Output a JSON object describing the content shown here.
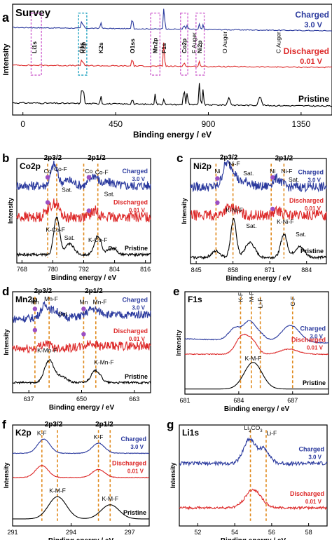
{
  "colors": {
    "charged": "#2b3a9e",
    "discharged": "#dd2a2a",
    "pristine": "#000000",
    "marker": "#e08a1e",
    "dot": "#9b4fc4",
    "survey_box": "#d16ad1",
    "c1s_box": "#2aa7c4"
  },
  "ui": {
    "intensity_label": "Intensity",
    "energy_label": "Binding energy / eV"
  },
  "chart_data": [
    {
      "id": "a",
      "type": "line",
      "panel_letter": "a",
      "title": "Survey",
      "xlabel": "Binding energy / eV",
      "ylabel": "Intensity",
      "xlim": [
        -50,
        1500
      ],
      "xticks": [
        0,
        450,
        900,
        1350
      ],
      "label_style": "big",
      "series": [
        {
          "name": "Charged",
          "sub": "3.0 V",
          "base": 0.76,
          "noise": 0.004,
          "tilt": 0.03,
          "peaks": [
            [
              285,
              0.06,
              4
            ],
            [
              293,
              0.04,
              4
            ],
            [
              378,
              0.06,
              4
            ],
            [
              531,
              0.12,
              4
            ],
            [
              685,
              0.22,
              4
            ],
            [
              782,
              0.05,
              4
            ],
            [
              798,
              0.04,
              4
            ],
            [
              857,
              0.05,
              4
            ],
            [
              874,
              0.04,
              4
            ]
          ]
        },
        {
          "name": "Discharged",
          "sub": "0.01 V",
          "base": 0.43,
          "noise": 0.005,
          "tilt": 0.02,
          "peaks": [
            [
              285,
              0.05,
              4
            ],
            [
              293,
              0.04,
              4
            ],
            [
              531,
              0.08,
              4
            ],
            [
              685,
              0.3,
              3
            ],
            [
              782,
              0.05,
              4
            ],
            [
              857,
              0.05,
              4
            ]
          ]
        },
        {
          "name": "Pristine",
          "sub": "",
          "base": 0.08,
          "noise": 0.006,
          "tilt": 0.03,
          "peaks": [
            [
              285,
              0.12,
              4
            ],
            [
              293,
              0.17,
              4
            ],
            [
              378,
              0.08,
              4
            ],
            [
              531,
              0.06,
              4
            ],
            [
              642,
              0.1,
              4
            ],
            [
              685,
              0.06,
              4
            ],
            [
              782,
              0.18,
              4
            ],
            [
              798,
              0.12,
              4
            ],
            [
              857,
              0.2,
              4
            ],
            [
              874,
              0.14,
              4
            ],
            [
              1000,
              0.07,
              8
            ],
            [
              1150,
              0.08,
              10
            ]
          ]
        }
      ],
      "peak_labels": [
        {
          "x": 55,
          "text": "Li1s"
        },
        {
          "x": 285,
          "text": "C1s"
        },
        {
          "x": 293,
          "text": "K2p"
        },
        {
          "x": 378,
          "text": "K2s"
        },
        {
          "x": 531,
          "text": "O1ss"
        },
        {
          "x": 642,
          "text": "Mn2p"
        },
        {
          "x": 685,
          "text": "F1s"
        },
        {
          "x": 782,
          "text": "Co2p"
        },
        {
          "x": 830,
          "text": "F Auger"
        },
        {
          "x": 857,
          "text": "Ni2p"
        },
        {
          "x": 980,
          "text": "O Auger"
        },
        {
          "x": 1240,
          "text": "C Auger"
        }
      ],
      "markers": []
    },
    {
      "id": "b",
      "type": "line",
      "panel_letter": "b",
      "title": "Co2p",
      "xlabel": "Binding energy / eV",
      "ylabel": "Intensity",
      "xlim": [
        766,
        818
      ],
      "xticks": [
        768,
        780,
        792,
        804,
        816
      ],
      "label_style": "small",
      "series": [
        {
          "name": "Charged",
          "sub": "3.0 V",
          "base": 0.74,
          "noise": 0.045,
          "tilt": 0,
          "peaks": [
            [
              780.5,
              0.2,
              1.8
            ],
            [
              796,
              0.1,
              2.2
            ],
            [
              786,
              0.05,
              3
            ],
            [
              802,
              0.03,
              3
            ]
          ]
        },
        {
          "name": "Discharged",
          "sub": "0.01 V",
          "base": 0.44,
          "noise": 0.05,
          "tilt": 0,
          "peaks": [
            [
              778,
              0.07,
              1.8
            ],
            [
              781,
              0.13,
              2
            ],
            [
              796.5,
              0.06,
              2
            ]
          ]
        },
        {
          "name": "Pristine",
          "sub": "",
          "base": 0.08,
          "noise": 0.012,
          "tilt": 0,
          "peaks": [
            [
              781.5,
              0.36,
              1.6
            ],
            [
              786.5,
              0.1,
              2.5
            ],
            [
              797.5,
              0.18,
              1.8
            ],
            [
              803,
              0.06,
              2.5
            ]
          ]
        }
      ],
      "peak_labels": [
        {
          "x": 780,
          "text": "2p3/2",
          "y": 0.985,
          "big": true
        },
        {
          "x": 797,
          "text": "2p1/2",
          "y": 0.985,
          "big": true
        },
        {
          "x": 778,
          "text": "Co",
          "y": 0.86
        },
        {
          "x": 783,
          "text": "Co-F",
          "y": 0.88
        },
        {
          "x": 794,
          "text": "Co",
          "y": 0.86
        },
        {
          "x": 799,
          "text": "Co-F",
          "y": 0.85
        },
        {
          "x": 785.5,
          "text": "Sat.",
          "y": 0.68
        },
        {
          "x": 802,
          "text": "Sat.",
          "y": 0.64
        },
        {
          "x": 781,
          "text": "K-Co-F",
          "y": 0.3
        },
        {
          "x": 797.5,
          "text": "K-Co-F",
          "y": 0.2
        },
        {
          "x": 786.5,
          "text": "Sat.",
          "y": 0.22
        },
        {
          "x": 803.5,
          "text": "Sat.",
          "y": 0.12
        }
      ],
      "markers": [
        778,
        781.5,
        792,
        797.5
      ],
      "dots": [
        [
          778,
          0.82
        ],
        [
          794,
          0.82
        ],
        [
          778,
          0.58
        ],
        [
          794,
          0.5
        ]
      ]
    },
    {
      "id": "c",
      "type": "line",
      "panel_letter": "c",
      "title": "Ni2p",
      "xlabel": "Binding energy / eV",
      "ylabel": "Intensity",
      "xlim": [
        843,
        891
      ],
      "xticks": [
        845,
        858,
        871,
        884
      ],
      "label_style": "small",
      "series": [
        {
          "name": "Charged",
          "sub": "3.0 V",
          "base": 0.73,
          "noise": 0.045,
          "tilt": 0,
          "peaks": [
            [
              855.5,
              0.2,
              1.8
            ],
            [
              858,
              0.14,
              1.8
            ],
            [
              873.5,
              0.08,
              2.2
            ],
            [
              862.5,
              0.05,
              3
            ]
          ]
        },
        {
          "name": "Discharged",
          "sub": "0.01 V",
          "base": 0.46,
          "noise": 0.05,
          "tilt": 0,
          "peaks": [
            [
              856,
              0.06,
              2
            ],
            [
              859,
              0.05,
              2
            ],
            [
              874,
              0.04,
              2
            ]
          ]
        },
        {
          "name": "Pristine",
          "sub": "",
          "base": 0.06,
          "noise": 0.012,
          "tilt": 0,
          "peaks": [
            [
              858.2,
              0.36,
              1.4
            ],
            [
              864,
              0.14,
              2.4
            ],
            [
              876,
              0.22,
              1.6
            ],
            [
              881.5,
              0.1,
              2.4
            ],
            [
              852,
              0.06,
              2
            ]
          ]
        }
      ],
      "peak_labels": [
        {
          "x": 856.5,
          "text": "2p3/2",
          "y": 0.99,
          "big": true
        },
        {
          "x": 876,
          "text": "2p1/2",
          "y": 0.985,
          "big": true
        },
        {
          "x": 852.5,
          "text": "Ni",
          "y": 0.86
        },
        {
          "x": 858.5,
          "text": "Ni-F",
          "y": 0.93
        },
        {
          "x": 872,
          "text": "Ni",
          "y": 0.86
        },
        {
          "x": 877,
          "text": "Ni-F",
          "y": 0.86
        },
        {
          "x": 863.5,
          "text": "Sat.",
          "y": 0.84
        },
        {
          "x": 879.5,
          "text": "Sat.",
          "y": 0.78
        },
        {
          "x": 858.5,
          "text": "K-Ni-F",
          "y": 0.49
        },
        {
          "x": 864.5,
          "text": "Sat.",
          "y": 0.34
        },
        {
          "x": 876.5,
          "text": "K-Ni-F",
          "y": 0.38
        },
        {
          "x": 882,
          "text": "Sat.",
          "y": 0.26
        }
      ],
      "markers": [
        852,
        858,
        871.5,
        876
      ],
      "dots": [
        [
          852.5,
          0.81
        ],
        [
          872,
          0.82
        ],
        [
          852.5,
          0.58
        ],
        [
          872,
          0.52
        ]
      ]
    },
    {
      "id": "d",
      "type": "line",
      "panel_letter": "d",
      "title": "Mn2p",
      "xlabel": "Binding energy / eV",
      "ylabel": "Intensity",
      "xlim": [
        633,
        667
      ],
      "xticks": [
        637,
        650,
        663
      ],
      "label_style": "small",
      "series": [
        {
          "name": "Charged",
          "sub": "3.0 V",
          "base": 0.78,
          "noise": 0.04,
          "tilt": -0.05,
          "peaks": [
            [
              641,
              0.12,
              1.5
            ],
            [
              643.5,
              0.06,
              1.5
            ],
            [
              652.5,
              0.07,
              1.6
            ],
            [
              655,
              0.03,
              1.6
            ]
          ]
        },
        {
          "name": "Discharged",
          "sub": "0.01 V",
          "base": 0.47,
          "noise": 0.045,
          "tilt": -0.04,
          "peaks": [
            [
              641,
              0.05,
              1.6
            ],
            [
              652.5,
              0.04,
              1.6
            ]
          ]
        },
        {
          "name": "Pristine",
          "sub": "",
          "base": 0.1,
          "noise": 0.01,
          "tilt": 0,
          "peaks": [
            [
              642,
              0.22,
              1.6
            ],
            [
              645,
              0.06,
              1.8
            ],
            [
              653.5,
              0.12,
              1.6
            ]
          ]
        }
      ],
      "peak_labels": [
        {
          "x": 640.5,
          "text": "2p3/2",
          "y": 0.985,
          "big": true
        },
        {
          "x": 653,
          "text": "2p1/2",
          "y": 0.985,
          "big": true
        },
        {
          "x": 638.5,
          "text": "Mn",
          "y": 0.88
        },
        {
          "x": 642.5,
          "text": "Mn-F",
          "y": 0.91
        },
        {
          "x": 650.5,
          "text": "Mn",
          "y": 0.88
        },
        {
          "x": 654.5,
          "text": "Mn-F",
          "y": 0.88
        },
        {
          "x": 645.5,
          "text": "Sat.",
          "y": 0.76
        },
        {
          "x": 641.5,
          "text": "K-Mn-F",
          "y": 0.4
        },
        {
          "x": 655.5,
          "text": "K-Mn-F",
          "y": 0.28
        }
      ],
      "markers": [
        638.5,
        642,
        650.5,
        653.5
      ],
      "dots": [
        [
          638.5,
          0.83
        ],
        [
          650.5,
          0.83
        ],
        [
          638.5,
          0.62
        ],
        [
          650.5,
          0.58
        ]
      ]
    },
    {
      "id": "e",
      "type": "line",
      "panel_letter": "e",
      "title": "F1s",
      "xlabel": "Binding energy / eV",
      "ylabel": "Intensity",
      "xlim": [
        681,
        689
      ],
      "xticks": [
        681,
        684,
        687
      ],
      "label_style": "small",
      "series": [
        {
          "name": "Charged",
          "sub": "3.0 V",
          "base": 0.5,
          "noise": 0.004,
          "tilt": 0.04,
          "peaks": [
            [
              683.8,
              0.12,
              0.5
            ],
            [
              684.6,
              0.18,
              0.45
            ],
            [
              685.2,
              0.06,
              0.4
            ],
            [
              686.9,
              0.16,
              0.7
            ]
          ]
        },
        {
          "name": "Discharged",
          "sub": "0.01 V",
          "base": 0.39,
          "noise": 0.004,
          "tilt": 0,
          "peaks": [
            [
              684.2,
              0.18,
              0.5
            ],
            [
              684.8,
              0.1,
              0.4
            ],
            [
              686.8,
              0.05,
              0.7
            ]
          ]
        },
        {
          "name": "Pristine",
          "sub": "",
          "base": 0.05,
          "noise": 0,
          "tilt": 0,
          "peaks": [
            [
              684.8,
              0.26,
              0.7
            ]
          ]
        }
      ],
      "peak_labels": [
        {
          "x": 684.1,
          "text": "K-F",
          "y": 0.9,
          "rot": true
        },
        {
          "x": 684.7,
          "text": "M-F",
          "y": 0.9,
          "rot": true
        },
        {
          "x": 685.2,
          "text": "Li-F",
          "y": 0.84,
          "rot": true
        },
        {
          "x": 687,
          "text": "C-F",
          "y": 0.86,
          "rot": true
        },
        {
          "x": 684.8,
          "text": "K-M-F",
          "y": 0.33
        }
      ],
      "markers": [
        684.1,
        684.7,
        685.2,
        687
      ],
      "dots": []
    },
    {
      "id": "f",
      "type": "line",
      "panel_letter": "f",
      "title": "K2p",
      "xlabel": "Binding energy / eV",
      "ylabel": "Intensity",
      "xlim": [
        291,
        298
      ],
      "xticks": [
        291,
        294,
        297
      ],
      "label_style": "small",
      "series": [
        {
          "name": "Charged",
          "sub": "3.0 V",
          "base": 0.72,
          "noise": 0.003,
          "tilt": 0,
          "peaks": [
            [
              292.6,
              0.14,
              0.45
            ],
            [
              295.4,
              0.1,
              0.45
            ]
          ]
        },
        {
          "name": "Discharged",
          "sub": "0.01 V",
          "base": 0.48,
          "noise": 0.003,
          "tilt": 0,
          "peaks": [
            [
              292.5,
              0.12,
              0.45
            ],
            [
              295.4,
              0.08,
              0.45
            ]
          ]
        },
        {
          "name": "Pristine",
          "sub": "",
          "base": 0.07,
          "noise": 0,
          "tilt": 0,
          "peaks": [
            [
              293.3,
              0.22,
              0.65
            ],
            [
              296,
              0.14,
              0.65
            ]
          ]
        }
      ],
      "peak_labels": [
        {
          "x": 293.1,
          "text": "2p3/2",
          "y": 0.985,
          "big": true
        },
        {
          "x": 295.7,
          "text": "2p1/2",
          "y": 0.985,
          "big": true
        },
        {
          "x": 292.5,
          "text": "K-F",
          "y": 0.9
        },
        {
          "x": 295.4,
          "text": "K-F",
          "y": 0.86
        },
        {
          "x": 293.3,
          "text": "K-M-F",
          "y": 0.33
        },
        {
          "x": 296,
          "text": "K-M-F",
          "y": 0.25
        }
      ],
      "markers": [
        292.5,
        293.3,
        295.4,
        296
      ],
      "dots": []
    },
    {
      "id": "g",
      "type": "line",
      "panel_letter": "g",
      "title": "Li1s",
      "xlabel": "Binding energy / eV",
      "ylabel": "Intensity",
      "xlim": [
        51,
        59
      ],
      "xticks": [
        52,
        54,
        56,
        58
      ],
      "label_style": "small",
      "series": [
        {
          "name": "Charged",
          "sub": "3.0 V",
          "base": 0.62,
          "noise": 0.018,
          "tilt": 0,
          "peaks": [
            [
              54.8,
              0.24,
              0.45
            ],
            [
              55.6,
              0.14,
              0.4
            ]
          ]
        },
        {
          "name": "Discharged",
          "sub": "0.01 V",
          "base": 0.18,
          "noise": 0.012,
          "tilt": 0,
          "peaks": [
            [
              55,
              0.18,
              0.6
            ]
          ]
        }
      ],
      "peak_labels": [
        {
          "x": 55,
          "text": "Li2CO3",
          "y": 0.95,
          "chem": true
        },
        {
          "x": 56,
          "text": "Li-F",
          "y": 0.9
        }
      ],
      "markers": [
        54.85,
        55.7
      ],
      "dots": []
    }
  ]
}
